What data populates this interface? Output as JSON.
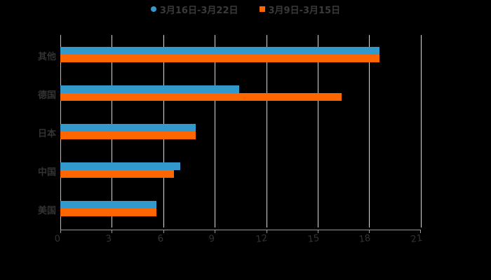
{
  "chart_data": {
    "type": "bar",
    "orientation": "horizontal",
    "title": "",
    "xlabel": "",
    "ylabel": "",
    "categories": [
      "其他",
      "德国",
      "日本",
      "中国",
      "美国"
    ],
    "series": [
      {
        "name": "3月16日-3月22日",
        "color": "#3399cc",
        "values": [
          18.6,
          10.4,
          7.9,
          7.0,
          5.6
        ]
      },
      {
        "name": "3月9日-3月15日",
        "color": "#ff6600",
        "values": [
          18.6,
          16.4,
          7.9,
          6.6,
          5.6
        ]
      }
    ],
    "xlim": [
      0,
      21
    ],
    "xticks": [
      "0",
      "3",
      "6",
      "9",
      "12",
      "15",
      "18",
      "21"
    ],
    "grid": true,
    "legend_position": "top"
  },
  "legend": {
    "s1": "3月16日-3月22日",
    "s2": "3月9日-3月15日"
  },
  "yaxis": {
    "c0": "其他",
    "c1": "德国",
    "c2": "日本",
    "c3": "中国",
    "c4": "美国"
  },
  "xaxis": {
    "t0": "0",
    "t1": "3",
    "t2": "6",
    "t3": "9",
    "t4": "12",
    "t5": "15",
    "t6": "18",
    "t7": "21"
  }
}
